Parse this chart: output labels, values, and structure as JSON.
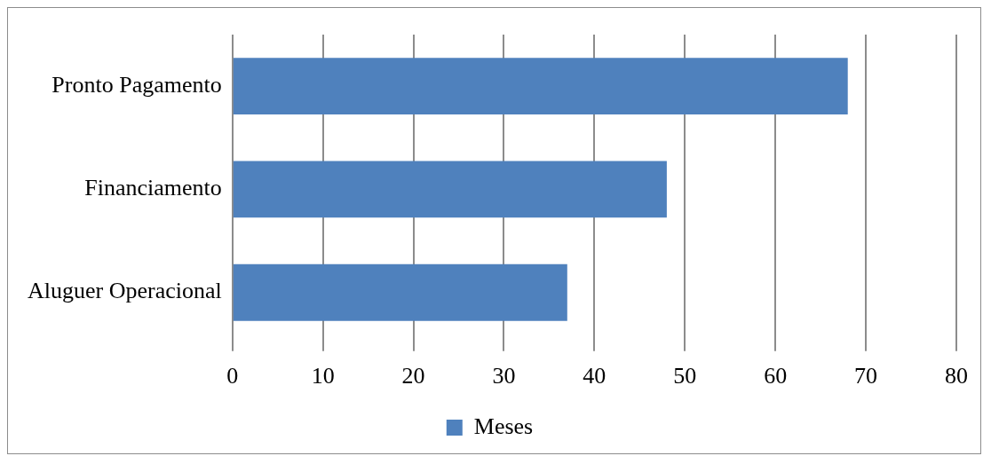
{
  "chart_data": {
    "type": "bar",
    "orientation": "horizontal",
    "categories": [
      "Pronto Pagamento",
      "Financiamento",
      "Aluguer Operacional"
    ],
    "series": [
      {
        "name": "Meses",
        "color": "#4f81bd",
        "values": [
          68,
          48,
          37
        ]
      }
    ],
    "xlim": [
      0,
      80
    ],
    "xticks": [
      0,
      10,
      20,
      30,
      40,
      50,
      60,
      70,
      80
    ],
    "grid": "x",
    "legend": "bottom"
  }
}
